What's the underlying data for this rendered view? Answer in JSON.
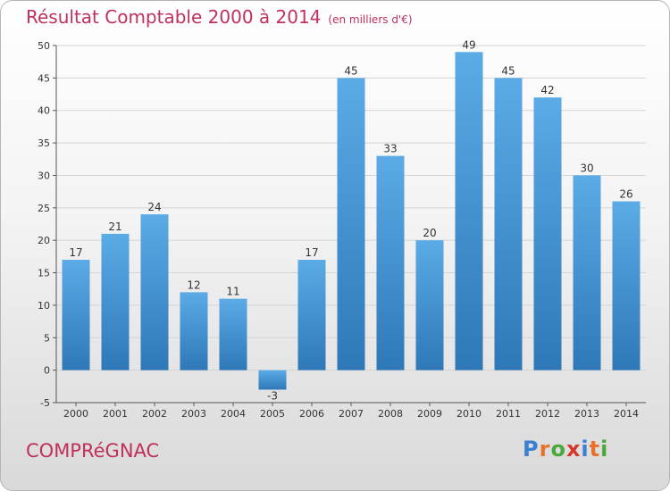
{
  "header": {
    "title": "Résultat Comptable 2000 à 2014",
    "subtitle": "(en milliers d'€)"
  },
  "footer": {
    "city": "COMPRéGNAC",
    "logo_text": "Proxiti",
    "logo_letters": [
      {
        "char": "P",
        "color": "#3a7fd1"
      },
      {
        "char": "r",
        "color": "#e8712b"
      },
      {
        "char": "o",
        "color": "#4aa83a"
      },
      {
        "char": "x",
        "color": "#d8352b"
      },
      {
        "char": "i",
        "color": "#3a7fd1"
      },
      {
        "char": "t",
        "color": "#e8712b"
      },
      {
        "char": "i",
        "color": "#4aa83a"
      }
    ]
  },
  "colors": {
    "title": "#c0305a",
    "bar_top": "#5aabe6",
    "bar_bottom": "#2f78b8",
    "grid": "#d4d4d4",
    "axis": "#555555"
  },
  "chart_data": {
    "type": "bar",
    "title": "Résultat Comptable 2000 à 2014",
    "subtitle": "(en milliers d'€)",
    "categories": [
      "2000",
      "2001",
      "2002",
      "2003",
      "2004",
      "2005",
      "2006",
      "2007",
      "2008",
      "2009",
      "2010",
      "2011",
      "2012",
      "2013",
      "2014"
    ],
    "values": [
      17,
      21,
      24,
      12,
      11,
      -3,
      17,
      45,
      33,
      20,
      49,
      45,
      42,
      30,
      26
    ],
    "ylim": [
      -5,
      50
    ],
    "yticks": [
      -5,
      0,
      5,
      10,
      15,
      20,
      25,
      30,
      35,
      40,
      45,
      50
    ],
    "grid": true,
    "data_labels": true
  }
}
